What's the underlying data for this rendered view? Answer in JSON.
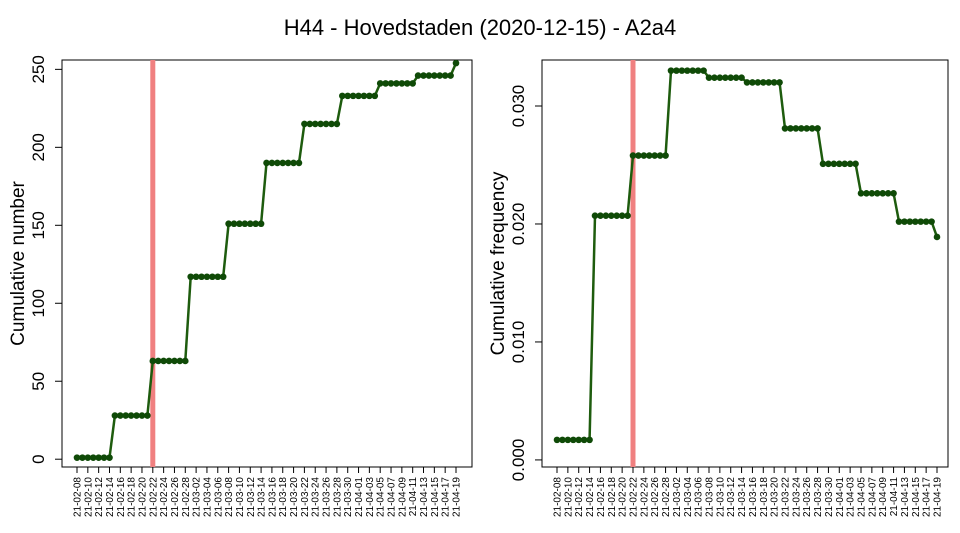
{
  "title": "H44 - Hovedstaden (2020-12-15) - A2a4",
  "colors": {
    "line": "#1e5c0e",
    "point": "#0f4a07",
    "vline": "#f08080",
    "axis": "#000000"
  },
  "chart_data": [
    {
      "type": "line",
      "ylabel": "Cumulative number",
      "ylim": [
        -5,
        256
      ],
      "yticks": [
        0,
        50,
        100,
        150,
        200,
        250
      ],
      "ytick_labels": [
        "0",
        "50",
        "100",
        "150",
        "200",
        "250"
      ],
      "vline_x": "21-02-22",
      "x": [
        "21-02-08",
        "21-02-09",
        "21-02-10",
        "21-02-11",
        "21-02-12",
        "21-02-13",
        "21-02-14",
        "21-02-15",
        "21-02-16",
        "21-02-17",
        "21-02-18",
        "21-02-19",
        "21-02-20",
        "21-02-21",
        "21-02-22",
        "21-02-23",
        "21-02-24",
        "21-02-25",
        "21-02-26",
        "21-02-27",
        "21-02-28",
        "21-03-01",
        "21-03-02",
        "21-03-03",
        "21-03-04",
        "21-03-05",
        "21-03-06",
        "21-03-07",
        "21-03-08",
        "21-03-09",
        "21-03-10",
        "21-03-11",
        "21-03-12",
        "21-03-13",
        "21-03-14",
        "21-03-15",
        "21-03-16",
        "21-03-17",
        "21-03-18",
        "21-03-19",
        "21-03-20",
        "21-03-21",
        "21-03-22",
        "21-03-23",
        "21-03-24",
        "21-03-25",
        "21-03-26",
        "21-03-27",
        "21-03-28",
        "21-03-29",
        "21-03-30",
        "21-03-31",
        "21-04-01",
        "21-04-02",
        "21-04-03",
        "21-04-04",
        "21-04-05",
        "21-04-06",
        "21-04-07",
        "21-04-08",
        "21-04-09",
        "21-04-10",
        "21-04-11",
        "21-04-12",
        "21-04-13",
        "21-04-14",
        "21-04-15",
        "21-04-16",
        "21-04-17",
        "21-04-18",
        "21-04-19"
      ],
      "xtick_labels": [
        "21-02-08",
        "21-02-10",
        "21-02-12",
        "21-02-14",
        "21-02-16",
        "21-02-18",
        "21-02-20",
        "21-02-22",
        "21-02-24",
        "21-02-26",
        "21-02-28",
        "21-03-02",
        "21-03-04",
        "21-03-06",
        "21-03-08",
        "21-03-10",
        "21-03-12",
        "21-03-14",
        "21-03-16",
        "21-03-18",
        "21-03-20",
        "21-03-22",
        "21-03-24",
        "21-03-26",
        "21-03-28",
        "21-03-30",
        "21-04-01",
        "21-04-03",
        "21-04-05",
        "21-04-07",
        "21-04-09",
        "21-04-11",
        "21-04-13",
        "21-04-15",
        "21-04-17",
        "21-04-19"
      ],
      "y": [
        1,
        1,
        1,
        1,
        1,
        1,
        1,
        28,
        28,
        28,
        28,
        28,
        28,
        28,
        63,
        63,
        63,
        63,
        63,
        63,
        63,
        117,
        117,
        117,
        117,
        117,
        117,
        117,
        151,
        151,
        151,
        151,
        151,
        151,
        151,
        190,
        190,
        190,
        190,
        190,
        190,
        190,
        215,
        215,
        215,
        215,
        215,
        215,
        215,
        233,
        233,
        233,
        233,
        233,
        233,
        233,
        241,
        241,
        241,
        241,
        241,
        241,
        241,
        246,
        246,
        246,
        246,
        246,
        246,
        246,
        254
      ]
    },
    {
      "type": "line",
      "ylabel": "Cumulative frequency",
      "ylim": [
        -0.0006,
        0.0339
      ],
      "yticks": [
        0,
        0.01,
        0.02,
        0.03
      ],
      "ytick_labels": [
        "0.000",
        "0.010",
        "0.020",
        "0.030"
      ],
      "vline_x": "21-02-22",
      "x": [
        "21-02-08",
        "21-02-09",
        "21-02-10",
        "21-02-11",
        "21-02-12",
        "21-02-13",
        "21-02-14",
        "21-02-15",
        "21-02-16",
        "21-02-17",
        "21-02-18",
        "21-02-19",
        "21-02-20",
        "21-02-21",
        "21-02-22",
        "21-02-23",
        "21-02-24",
        "21-02-25",
        "21-02-26",
        "21-02-27",
        "21-02-28",
        "21-03-01",
        "21-03-02",
        "21-03-03",
        "21-03-04",
        "21-03-05",
        "21-03-06",
        "21-03-07",
        "21-03-08",
        "21-03-09",
        "21-03-10",
        "21-03-11",
        "21-03-12",
        "21-03-13",
        "21-03-14",
        "21-03-15",
        "21-03-16",
        "21-03-17",
        "21-03-18",
        "21-03-19",
        "21-03-20",
        "21-03-21",
        "21-03-22",
        "21-03-23",
        "21-03-24",
        "21-03-25",
        "21-03-26",
        "21-03-27",
        "21-03-28",
        "21-03-29",
        "21-03-30",
        "21-03-31",
        "21-04-01",
        "21-04-02",
        "21-04-03",
        "21-04-04",
        "21-04-05",
        "21-04-06",
        "21-04-07",
        "21-04-08",
        "21-04-09",
        "21-04-10",
        "21-04-11",
        "21-04-12",
        "21-04-13",
        "21-04-14",
        "21-04-15",
        "21-04-16",
        "21-04-17",
        "21-04-18",
        "21-04-19"
      ],
      "xtick_labels": [
        "21-02-08",
        "21-02-10",
        "21-02-12",
        "21-02-14",
        "21-02-16",
        "21-02-18",
        "21-02-20",
        "21-02-22",
        "21-02-24",
        "21-02-26",
        "21-02-28",
        "21-03-02",
        "21-03-04",
        "21-03-06",
        "21-03-08",
        "21-03-10",
        "21-03-12",
        "21-03-14",
        "21-03-16",
        "21-03-18",
        "21-03-20",
        "21-03-22",
        "21-03-24",
        "21-03-26",
        "21-03-28",
        "21-03-30",
        "21-04-01",
        "21-04-03",
        "21-04-05",
        "21-04-07",
        "21-04-09",
        "21-04-11",
        "21-04-13",
        "21-04-15",
        "21-04-17",
        "21-04-19"
      ],
      "y": [
        0.0017,
        0.0017,
        0.0017,
        0.0017,
        0.0017,
        0.0017,
        0.0017,
        0.0207,
        0.0207,
        0.0207,
        0.0207,
        0.0207,
        0.0207,
        0.0207,
        0.0258,
        0.0258,
        0.0258,
        0.0258,
        0.0258,
        0.0258,
        0.0258,
        0.033,
        0.033,
        0.033,
        0.033,
        0.033,
        0.033,
        0.033,
        0.0324,
        0.0324,
        0.0324,
        0.0324,
        0.0324,
        0.0324,
        0.0324,
        0.032,
        0.032,
        0.032,
        0.032,
        0.032,
        0.032,
        0.032,
        0.0281,
        0.0281,
        0.0281,
        0.0281,
        0.0281,
        0.0281,
        0.0281,
        0.0251,
        0.0251,
        0.0251,
        0.0251,
        0.0251,
        0.0251,
        0.0251,
        0.0226,
        0.0226,
        0.0226,
        0.0226,
        0.0226,
        0.0226,
        0.0226,
        0.0202,
        0.0202,
        0.0202,
        0.0202,
        0.0202,
        0.0202,
        0.0202,
        0.0189
      ]
    }
  ]
}
